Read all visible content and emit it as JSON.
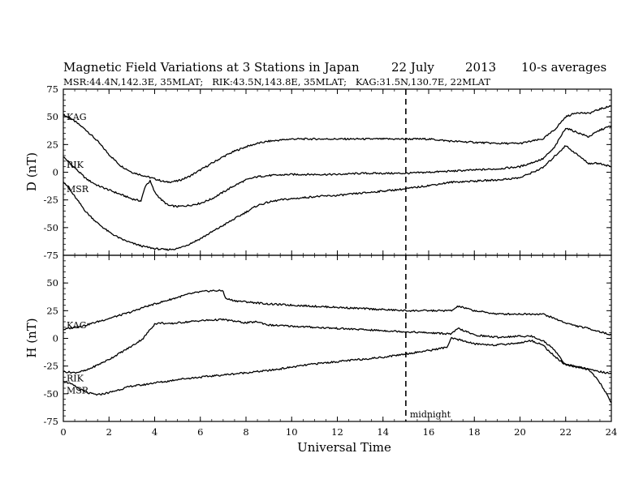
{
  "header": {
    "title_left": "Magnetic Field Variations at 3 Stations in Japan",
    "date_day": "22 July",
    "date_year": "2013",
    "averaging": "10-s averages",
    "stations_line": "MSR:44.4N,142.3E, 35MLAT;   RIK:43.5N,143.8E, 35MLAT;   KAG:31.5N,130.7E, 22MLAT"
  },
  "annotations": {
    "midnight_label": "midnight",
    "midnight_ut": 15
  },
  "chart_data": [
    {
      "type": "line",
      "panel": "top",
      "ylabel": "D (nT)",
      "xlabel": "",
      "ylim": [
        -75,
        75
      ],
      "xlim": [
        0,
        24
      ],
      "yticks": [
        -75,
        -50,
        -25,
        0,
        25,
        50,
        75
      ],
      "xticks": [
        0,
        2,
        4,
        6,
        8,
        10,
        12,
        14,
        16,
        18,
        20,
        22,
        24
      ],
      "series": [
        {
          "name": "KAG",
          "x": [
            0,
            0.5,
            1,
            1.5,
            2,
            2.5,
            3,
            3.5,
            4,
            4.5,
            5,
            5.5,
            6,
            6.5,
            7,
            7.5,
            8,
            8.5,
            9,
            9.5,
            10,
            11,
            12,
            13,
            14,
            15,
            16,
            17,
            18,
            19,
            20,
            21,
            21.5,
            22,
            22.5,
            23,
            23.5,
            24
          ],
          "y": [
            52,
            46,
            38,
            28,
            16,
            6,
            0,
            -3,
            -6,
            -9,
            -8,
            -4,
            2,
            8,
            14,
            19,
            23,
            26,
            28,
            29,
            30,
            30,
            30,
            30,
            30,
            30,
            30,
            28,
            27,
            26,
            26,
            30,
            38,
            50,
            54,
            53,
            57,
            60
          ]
        },
        {
          "name": "RIK",
          "x": [
            0,
            0.5,
            1,
            1.5,
            2,
            2.5,
            3,
            3.4,
            3.6,
            3.8,
            4,
            4.3,
            4.6,
            5,
            5.5,
            6,
            6.5,
            7,
            7.5,
            8,
            8.5,
            9,
            10,
            11,
            12,
            13,
            14,
            15,
            16,
            17,
            18,
            19,
            20,
            21,
            21.5,
            22,
            22.5,
            23,
            23.5,
            24
          ],
          "y": [
            14,
            4,
            -6,
            -12,
            -16,
            -20,
            -24,
            -26,
            -12,
            -8,
            -18,
            -25,
            -30,
            -31,
            -30,
            -28,
            -24,
            -18,
            -12,
            -7,
            -4,
            -3,
            -2,
            -2,
            -2,
            -1,
            -1,
            -1,
            0,
            1,
            2,
            3,
            5,
            12,
            22,
            40,
            36,
            32,
            38,
            42
          ]
        },
        {
          "name": "MSR",
          "x": [
            0,
            0.5,
            1,
            1.5,
            2,
            2.5,
            3,
            3.5,
            4,
            4.5,
            5,
            5.5,
            6,
            6.5,
            7,
            7.5,
            8,
            8.5,
            9,
            9.5,
            10,
            11,
            12,
            13,
            14,
            15,
            16,
            17,
            18,
            19,
            20,
            21,
            21.5,
            22,
            22.5,
            23,
            23.5,
            24
          ],
          "y": [
            -8,
            -22,
            -36,
            -46,
            -54,
            -60,
            -64,
            -67,
            -69,
            -70,
            -69,
            -65,
            -60,
            -54,
            -48,
            -42,
            -36,
            -30,
            -27,
            -25,
            -24,
            -22,
            -21,
            -19,
            -17,
            -15,
            -12,
            -9,
            -8,
            -7,
            -5,
            4,
            14,
            24,
            16,
            8,
            8,
            5
          ]
        }
      ]
    },
    {
      "type": "line",
      "panel": "bottom",
      "ylabel": "H (nT)",
      "xlabel": "Universal Time",
      "ylim": [
        -75,
        75
      ],
      "xlim": [
        0,
        24
      ],
      "yticks": [
        -75,
        -50,
        -25,
        0,
        25,
        50
      ],
      "xticks": [
        0,
        2,
        4,
        6,
        8,
        10,
        12,
        14,
        16,
        18,
        20,
        22,
        24
      ],
      "xtick_labels": [
        "0",
        "2",
        "4",
        "6",
        "8",
        "10",
        "12",
        "14",
        "16",
        "18",
        "20",
        "22",
        "24"
      ],
      "series": [
        {
          "name": "KAG",
          "x": [
            0,
            0.5,
            1,
            1.5,
            2,
            2.5,
            3,
            3.5,
            4,
            4.5,
            5,
            5.5,
            6,
            6.5,
            7,
            7.1,
            7.5,
            8,
            9,
            10,
            11,
            12,
            13,
            14,
            15,
            16,
            17,
            17.3,
            18,
            19,
            20,
            21,
            21.5,
            22,
            22.5,
            23,
            23.5,
            24
          ],
          "y": [
            8,
            10,
            12,
            15,
            18,
            21,
            24,
            28,
            31,
            34,
            37,
            40,
            42,
            43,
            43,
            36,
            34,
            33,
            31,
            30,
            29,
            28,
            27,
            26,
            25,
            25,
            25,
            29,
            25,
            22,
            22,
            22,
            18,
            14,
            11,
            9,
            6,
            3
          ]
        },
        {
          "name": "RIK",
          "x": [
            0,
            0.5,
            1,
            1.5,
            2,
            2.5,
            3,
            3.5,
            3.8,
            4,
            4.3,
            4.6,
            5,
            5.5,
            6,
            7,
            8,
            8.5,
            9,
            10,
            11,
            12,
            13,
            14,
            15,
            16,
            17,
            17.3,
            18,
            19,
            20,
            20.5,
            21,
            21.5,
            22,
            22.5,
            23,
            23.5,
            24
          ],
          "y": [
            -30,
            -31,
            -29,
            -24,
            -19,
            -13,
            -7,
            0,
            8,
            13,
            14,
            13,
            14,
            15,
            16,
            17,
            14,
            15,
            12,
            11,
            10,
            9,
            8,
            7,
            6,
            5,
            4,
            9,
            3,
            1,
            2,
            2,
            -2,
            -10,
            -24,
            -26,
            -28,
            -30,
            -32
          ]
        },
        {
          "name": "MSR",
          "x": [
            0,
            0.5,
            1,
            1.5,
            2,
            2.5,
            3,
            3.5,
            4,
            4.5,
            5,
            6,
            7,
            8,
            9,
            10,
            11,
            12,
            13,
            14,
            15,
            16,
            16.8,
            17,
            17.5,
            18,
            19,
            20,
            20.5,
            21,
            21.5,
            22,
            22.5,
            23,
            23.5,
            24
          ],
          "y": [
            -38,
            -43,
            -49,
            -51,
            -49,
            -46,
            -43,
            -42,
            -40,
            -39,
            -37,
            -35,
            -33,
            -31,
            -29,
            -26,
            -23,
            -21,
            -19,
            -17,
            -14,
            -11,
            -8,
            0,
            -2,
            -5,
            -6,
            -4,
            -2,
            -6,
            -16,
            -24,
            -25,
            -28,
            -40,
            -58
          ]
        }
      ]
    }
  ]
}
